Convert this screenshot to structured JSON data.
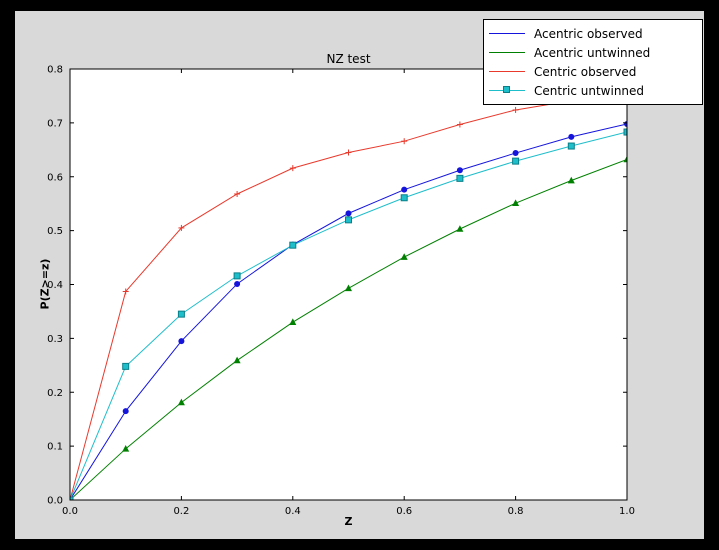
{
  "window": {
    "background": "#000000",
    "figure_background": "#d9d9d9",
    "axes_background": "#ffffff",
    "axes_edge_color": "#000000"
  },
  "chart_data": {
    "type": "line",
    "title": "NZ test",
    "xlabel": "Z",
    "ylabel": "P(Z>=z)",
    "xlim": [
      0.0,
      1.0
    ],
    "ylim": [
      0.0,
      0.8
    ],
    "xticks": [
      0.0,
      0.2,
      0.4,
      0.6,
      0.8,
      1.0
    ],
    "yticks": [
      0.0,
      0.1,
      0.2,
      0.3,
      0.4,
      0.5,
      0.6,
      0.7,
      0.8
    ],
    "grid": false,
    "legend_position": "upper right",
    "x": [
      0.0,
      0.1,
      0.2,
      0.3,
      0.4,
      0.5,
      0.6,
      0.7,
      0.8,
      0.9,
      1.0
    ],
    "series": [
      {
        "name": "Acentric observed",
        "color": "#1414dc",
        "marker": "circle",
        "legend_marker": false,
        "values": [
          0.0,
          0.165,
          0.295,
          0.401,
          0.474,
          0.532,
          0.576,
          0.612,
          0.644,
          0.674,
          0.698
        ]
      },
      {
        "name": "Acentric untwinned",
        "color": "#008000",
        "marker": "triangle",
        "legend_marker": false,
        "values": [
          0.0,
          0.095,
          0.181,
          0.259,
          0.33,
          0.393,
          0.451,
          0.503,
          0.551,
          0.593,
          0.632
        ]
      },
      {
        "name": "Centric observed",
        "color": "#e8392c",
        "marker": "plus",
        "legend_marker": false,
        "values": [
          0.0,
          0.387,
          0.505,
          0.568,
          0.616,
          0.645,
          0.666,
          0.697,
          0.724,
          0.741,
          0.754
        ]
      },
      {
        "name": "Centric untwinned",
        "color": "#1fbecb",
        "marker": "square",
        "marker_edge": "#0a7f88",
        "legend_marker": true,
        "values": [
          0.0,
          0.248,
          0.345,
          0.416,
          0.473,
          0.52,
          0.561,
          0.597,
          0.629,
          0.657,
          0.683
        ]
      }
    ]
  }
}
